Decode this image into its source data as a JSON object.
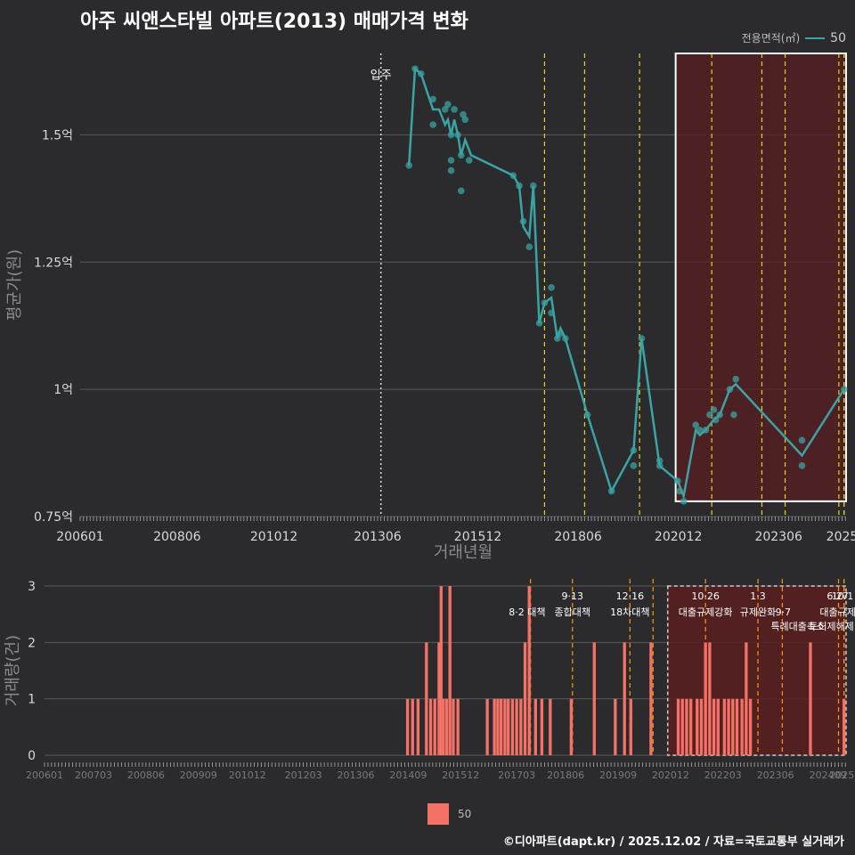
{
  "title": "아주 씨앤스타빌 아파트(2013) 매매가격 변화",
  "credit": "©디아파트(dapt.kr) / 2025.12.02 / 자료=국토교통부 실거래가",
  "legend": {
    "title": "전용면적(㎡)",
    "series_name": "50"
  },
  "colors": {
    "background": "#2b2b2d",
    "line": "#3aa3a3",
    "bar": "#f47166",
    "highlight": "#5a1e20",
    "policy_line": "#e8d21a",
    "policy_line_bottom": "#ff9900"
  },
  "chart_data": [
    {
      "type": "line",
      "title": "아주 씨앤스타빌 아파트(2013) 매매가격 변화",
      "xlabel": "거래년월",
      "ylabel": "평균가(원)",
      "x_range": [
        2006.0,
        2025.1
      ],
      "ylim": [
        0.75,
        1.66
      ],
      "x_tick_values": [
        2006.0,
        2008.417,
        2010.833,
        2013.417,
        2015.917,
        2018.417,
        2020.917,
        2023.417,
        2025.0
      ],
      "x_tick_labels": [
        "200601",
        "200806",
        "201012",
        "201306",
        "201512",
        "201806",
        "202012",
        "202306",
        "2025"
      ],
      "y_tick_values": [
        0.75,
        1.0,
        1.25,
        1.5
      ],
      "y_tick_labels": [
        "0.75억",
        "1억",
        "1.25억",
        "1.5억"
      ],
      "move_in": {
        "x": 2013.5,
        "label": "입주"
      },
      "policy_lines_x": [
        2017.58,
        2018.58,
        2019.95,
        2021.75,
        2023.0,
        2023.58,
        2024.92,
        2025.25,
        2025.52
      ],
      "highlight_range": {
        "x": [
          2020.85,
          2025.1
        ],
        "y": [
          0.78,
          1.66
        ]
      },
      "series": [
        {
          "name": "50",
          "line": [
            [
              2014.2,
              1.44
            ],
            [
              2014.35,
              1.63
            ],
            [
              2014.5,
              1.62
            ],
            [
              2014.8,
              1.55
            ],
            [
              2014.95,
              1.55
            ],
            [
              2015.1,
              1.52
            ],
            [
              2015.17,
              1.53
            ],
            [
              2015.25,
              1.5
            ],
            [
              2015.33,
              1.53
            ],
            [
              2015.42,
              1.5
            ],
            [
              2015.5,
              1.46
            ],
            [
              2015.6,
              1.49
            ],
            [
              2015.75,
              1.46
            ],
            [
              2016.8,
              1.42
            ],
            [
              2016.95,
              1.4
            ],
            [
              2017.05,
              1.32
            ],
            [
              2017.2,
              1.3
            ],
            [
              2017.3,
              1.4
            ],
            [
              2017.45,
              1.13
            ],
            [
              2017.58,
              1.17
            ],
            [
              2017.75,
              1.18
            ],
            [
              2017.9,
              1.1
            ],
            [
              2017.98,
              1.12
            ],
            [
              2018.1,
              1.1
            ],
            [
              2018.65,
              0.95
            ],
            [
              2019.25,
              0.8
            ],
            [
              2019.8,
              0.88
            ],
            [
              2020.0,
              1.1
            ],
            [
              2020.45,
              0.85
            ],
            [
              2020.9,
              0.82
            ],
            [
              2021.05,
              0.79
            ],
            [
              2021.35,
              0.92
            ],
            [
              2021.45,
              0.91
            ],
            [
              2021.6,
              0.92
            ],
            [
              2021.7,
              0.93
            ],
            [
              2021.8,
              0.94
            ],
            [
              2021.95,
              0.95
            ],
            [
              2022.2,
              1.0
            ],
            [
              2022.35,
              1.01
            ],
            [
              2024.0,
              0.87
            ],
            [
              2025.05,
              1.0
            ]
          ],
          "points": [
            [
              2014.2,
              1.44
            ],
            [
              2014.35,
              1.63
            ],
            [
              2014.5,
              1.62
            ],
            [
              2014.8,
              1.57
            ],
            [
              2014.8,
              1.52
            ],
            [
              2015.1,
              1.55
            ],
            [
              2015.17,
              1.56
            ],
            [
              2015.25,
              1.5
            ],
            [
              2015.25,
              1.45
            ],
            [
              2015.25,
              1.43
            ],
            [
              2015.33,
              1.55
            ],
            [
              2015.42,
              1.5
            ],
            [
              2015.5,
              1.39
            ],
            [
              2015.5,
              1.46
            ],
            [
              2015.55,
              1.54
            ],
            [
              2015.6,
              1.53
            ],
            [
              2015.7,
              1.45
            ],
            [
              2016.8,
              1.42
            ],
            [
              2016.95,
              1.4
            ],
            [
              2017.05,
              1.33
            ],
            [
              2017.2,
              1.28
            ],
            [
              2017.3,
              1.4
            ],
            [
              2017.45,
              1.13
            ],
            [
              2017.58,
              1.17
            ],
            [
              2017.75,
              1.2
            ],
            [
              2017.75,
              1.15
            ],
            [
              2017.9,
              1.1
            ],
            [
              2017.98,
              1.11
            ],
            [
              2018.1,
              1.1
            ],
            [
              2018.65,
              0.95
            ],
            [
              2019.25,
              0.8
            ],
            [
              2019.8,
              0.88
            ],
            [
              2019.8,
              0.85
            ],
            [
              2020.0,
              1.1
            ],
            [
              2020.45,
              0.86
            ],
            [
              2020.45,
              0.85
            ],
            [
              2020.9,
              0.82
            ],
            [
              2020.95,
              0.8
            ],
            [
              2021.05,
              0.78
            ],
            [
              2021.35,
              0.93
            ],
            [
              2021.45,
              0.92
            ],
            [
              2021.6,
              0.92
            ],
            [
              2021.7,
              0.95
            ],
            [
              2021.8,
              0.96
            ],
            [
              2021.85,
              0.94
            ],
            [
              2021.95,
              0.95
            ],
            [
              2022.2,
              1.0
            ],
            [
              2022.3,
              0.95
            ],
            [
              2022.35,
              1.02
            ],
            [
              2024.0,
              0.9
            ],
            [
              2024.0,
              0.85
            ],
            [
              2025.05,
              1.0
            ]
          ]
        }
      ]
    },
    {
      "type": "bar",
      "ylabel": "거래량(건)",
      "x_range": [
        2006.0,
        2025.1
      ],
      "ylim": [
        0,
        3
      ],
      "x_tick_values": [
        2006.0,
        2007.167,
        2008.417,
        2009.667,
        2010.833,
        2012.167,
        2013.417,
        2014.667,
        2015.917,
        2017.25,
        2018.417,
        2019.667,
        2020.917,
        2022.167,
        2023.417,
        2024.667,
        2025.0
      ],
      "x_tick_labels": [
        "200601",
        "200703",
        "200806",
        "200909",
        "201012",
        "201203",
        "201306",
        "201409",
        "201512",
        "201703",
        "201806",
        "201909",
        "202012",
        "202203",
        "202306",
        "202409",
        "2025"
      ],
      "y_tick_values": [
        0,
        1,
        2,
        3
      ],
      "y_tick_labels": [
        "0",
        "1",
        "2",
        "3"
      ],
      "policy_lines_x": [
        2017.58,
        2018.58,
        2019.95,
        2020.5,
        2021.75,
        2023.0,
        2023.58,
        2024.92,
        2025.25,
        2025.52
      ],
      "highlight_range": {
        "x": [
          2020.85,
          2025.1
        ],
        "y": [
          0,
          3
        ]
      },
      "policy_labels": [
        {
          "x": 2017.5,
          "line1": "",
          "line2": "8·2 대책"
        },
        {
          "x": 2018.58,
          "line1": "9·13",
          "line2": "종합대책"
        },
        {
          "x": 2019.95,
          "line1": "12·16",
          "line2": "18차대책"
        },
        {
          "x": 2021.75,
          "line1": "10·26",
          "line2": "대출규제강화"
        },
        {
          "x": 2023.0,
          "line1": "1·3",
          "line2": "규제완화"
        },
        {
          "x": 2023.6,
          "line1": "",
          "line2": "9·7"
        },
        {
          "x": 2023.95,
          "line1": "",
          "line3": "특례대출축소"
        },
        {
          "x": 2024.75,
          "line1": "",
          "line3": "토허제해제"
        },
        {
          "x": 2024.9,
          "line1": "6·27",
          "line2": "대출규제"
        },
        {
          "x": 2025.05,
          "line1": "10·1",
          "line2": ""
        }
      ],
      "categories_x": [
        2014.65,
        2014.77,
        2014.9,
        2015.1,
        2015.2,
        2015.3,
        2015.4,
        2015.45,
        2015.5,
        2015.58,
        2015.66,
        2015.74,
        2015.85,
        2016.55,
        2016.72,
        2016.8,
        2016.88,
        2016.97,
        2017.05,
        2017.15,
        2017.25,
        2017.35,
        2017.45,
        2017.55,
        2017.7,
        2017.85,
        2018.05,
        2018.55,
        2019.1,
        2019.6,
        2019.82,
        2019.97,
        2020.45,
        2021.1,
        2021.2,
        2021.3,
        2021.4,
        2021.55,
        2021.65,
        2021.75,
        2021.85,
        2021.95,
        2022.05,
        2022.2,
        2022.3,
        2022.4,
        2022.5,
        2022.62,
        2022.72,
        2022.82,
        2024.25,
        2025.05
      ],
      "values": [
        1,
        1,
        1,
        2,
        1,
        1,
        2,
        3,
        1,
        1,
        3,
        1,
        1,
        1,
        1,
        1,
        1,
        1,
        1,
        1,
        1,
        1,
        2,
        3,
        1,
        1,
        1,
        1,
        2,
        1,
        2,
        1,
        2,
        1,
        1,
        1,
        1,
        1,
        1,
        2,
        2,
        1,
        1,
        1,
        1,
        1,
        1,
        1,
        2,
        1,
        2,
        1
      ]
    }
  ]
}
